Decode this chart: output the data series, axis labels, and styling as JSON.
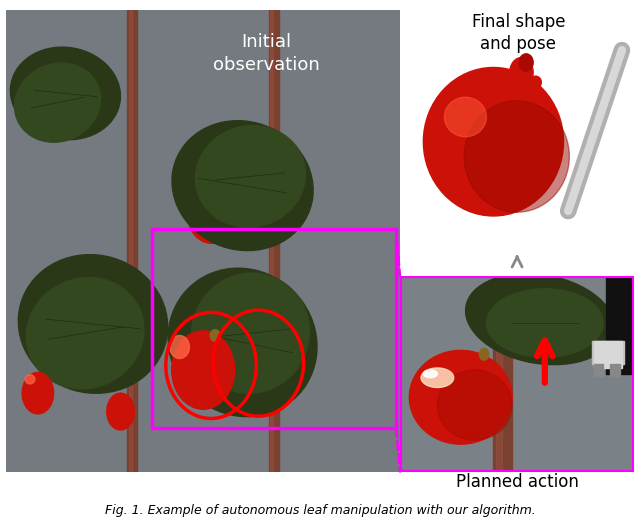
{
  "bg_color": "#FFFFFF",
  "figure_width": 6.4,
  "figure_height": 5.21,
  "main_photo_bg": "#7B8A8B",
  "stem_color": "#7A4030",
  "leaf_color": "#2E3D1A",
  "leaf_dark": "#1A2610",
  "fruit_color": "#CC1108",
  "fruit_highlight": "#FF6644",
  "gripper_dark": "#1A1A1A",
  "gripper_light": "#C0C0C0",
  "magenta": "#FF00FF",
  "red": "#FF0000",
  "gray_arrow": "#888888",
  "shape_bg": "#FFFFFF",
  "caption": "Fig. 1. Example of autonomous leaf manipulation with our algorithm.",
  "caption_fontsize": 9,
  "label_initial": "Initial\nobservation",
  "label_final": "Final shape\nand pose",
  "label_planned": "Planned action"
}
